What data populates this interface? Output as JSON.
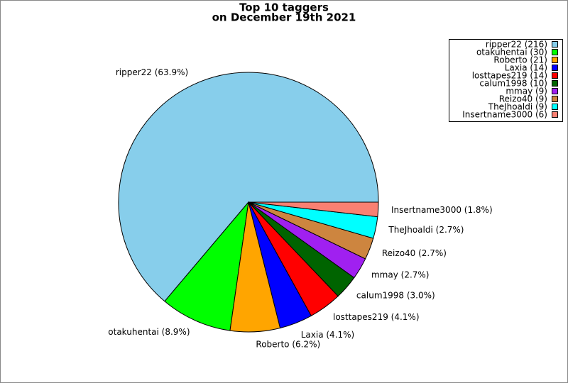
{
  "chart_data": {
    "type": "pie",
    "title": "Top 10 taggers",
    "subtitle": "on December 19th 2021",
    "categories": [
      "ripper22 (216)",
      "otakuhentai (30)",
      "Roberto (21)",
      "Laxia (14)",
      "losttapes219 (14)",
      "calum1998 (10)",
      "mmay (9)",
      "Reizo40 (9)",
      "TheJhoaldi (9)",
      "Insertname3000 (6)"
    ],
    "values": [
      63.9,
      8.9,
      6.2,
      4.1,
      4.1,
      3.0,
      2.7,
      2.7,
      2.7,
      1.8
    ],
    "value_labels": [
      "ripper22 (63.9%)",
      "otakuhentai (8.9%)",
      "Roberto (6.2%)",
      "Laxia (4.1%)",
      "losttapes219 (4.1%)",
      "calum1998 (3.0%)",
      "mmay (2.7%)",
      "Reizo40 (2.7%)",
      "TheJhoaldi (2.7%)",
      "Insertname3000 (1.8%)"
    ],
    "colors": [
      "#87ceeb",
      "#00ff00",
      "#ffa500",
      "#0000ff",
      "#ff0000",
      "#006400",
      "#a020f0",
      "#cd853f",
      "#00ffff",
      "#fa8072"
    ],
    "legend": "upper right"
  }
}
